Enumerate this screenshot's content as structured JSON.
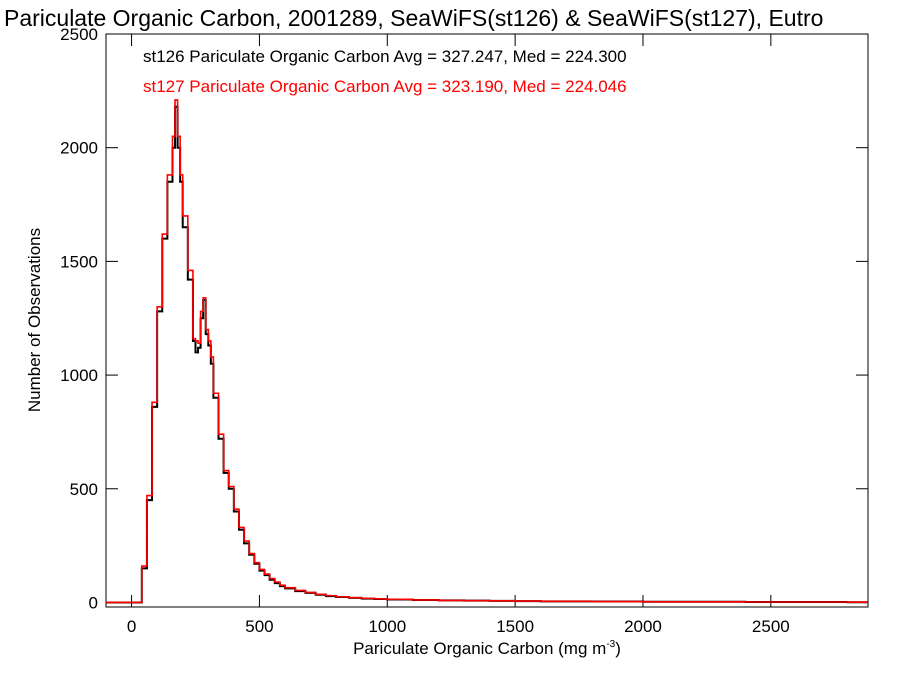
{
  "chart_data": {
    "type": "line",
    "title": "Pariculate Organic Carbon, 2001289, SeaWiFS(st126) & SeaWiFS(st127), Eutro",
    "xlabel": "Pariculate Organic Carbon (mg m",
    "xlabel_sup": "-3",
    "xlabel_end": ")",
    "ylabel": "Number of Observations",
    "xlim": [
      -100,
      2880
    ],
    "ylim": [
      -20,
      2500
    ],
    "x_ticks": [
      0,
      500,
      1000,
      1500,
      2000,
      2500
    ],
    "x_tick_labels": [
      "0",
      "500",
      "1000",
      "1500",
      "2000",
      "2500"
    ],
    "y_ticks": [
      0,
      500,
      1000,
      1500,
      2000,
      2500
    ],
    "y_tick_labels": [
      "0",
      "500",
      "1000",
      "1500",
      "2000",
      "2500"
    ],
    "grid": false,
    "legend_position": "top-left",
    "series": [
      {
        "name": "st126",
        "label": "st126 Pariculate Organic Carbon Avg = 327.247, Med = 224.300",
        "color": "#000000",
        "x": [
          20,
          40,
          60,
          80,
          100,
          120,
          140,
          160,
          170,
          180,
          190,
          200,
          220,
          240,
          250,
          260,
          270,
          280,
          290,
          300,
          310,
          320,
          340,
          360,
          380,
          400,
          420,
          440,
          460,
          480,
          500,
          520,
          540,
          560,
          580,
          600,
          640,
          680,
          720,
          760,
          800,
          850,
          900,
          950,
          1000,
          1100,
          1200,
          1300,
          1400,
          1500,
          1600,
          1800,
          2000,
          2200,
          2400,
          2600,
          2800,
          2880
        ],
        "y": [
          0,
          150,
          450,
          860,
          1280,
          1600,
          1850,
          2000,
          2180,
          2000,
          1850,
          1650,
          1420,
          1150,
          1100,
          1120,
          1250,
          1330,
          1180,
          1130,
          1050,
          900,
          720,
          570,
          500,
          400,
          320,
          260,
          210,
          170,
          140,
          120,
          100,
          85,
          72,
          62,
          50,
          42,
          34,
          28,
          24,
          20,
          17,
          15,
          13,
          11,
          9,
          8,
          7,
          6,
          5,
          4,
          3,
          3,
          2,
          2,
          1,
          1
        ]
      },
      {
        "name": "st127",
        "label": "st127 Pariculate Organic Carbon Avg = 323.190, Med = 224.046",
        "color": "#ff0000",
        "x": [
          20,
          40,
          60,
          80,
          100,
          120,
          140,
          160,
          170,
          180,
          190,
          200,
          220,
          240,
          250,
          260,
          270,
          280,
          290,
          300,
          310,
          320,
          340,
          360,
          380,
          400,
          420,
          440,
          460,
          480,
          500,
          520,
          540,
          560,
          580,
          600,
          640,
          680,
          720,
          760,
          800,
          850,
          900,
          950,
          1000,
          1100,
          1200,
          1300,
          1400,
          1500,
          1600,
          1800,
          2000,
          2200,
          2400,
          2600,
          2800,
          2880
        ],
        "y": [
          0,
          160,
          470,
          880,
          1300,
          1620,
          1880,
          2050,
          2210,
          2050,
          1880,
          1700,
          1460,
          1160,
          1150,
          1140,
          1280,
          1340,
          1200,
          1150,
          1080,
          920,
          740,
          580,
          510,
          410,
          330,
          270,
          215,
          175,
          145,
          125,
          105,
          90,
          76,
          65,
          53,
          44,
          36,
          30,
          25,
          21,
          18,
          16,
          14,
          11,
          9,
          8,
          7,
          6,
          5,
          4,
          3,
          3,
          2,
          2,
          1,
          1
        ]
      }
    ]
  }
}
